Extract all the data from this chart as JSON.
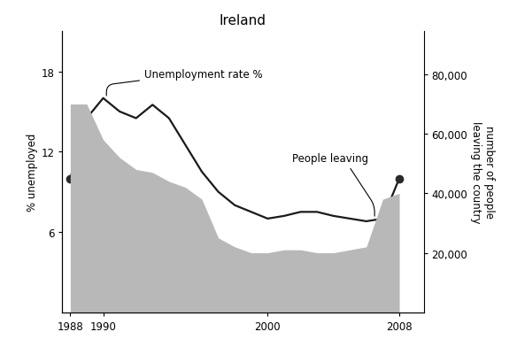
{
  "title": "Ireland",
  "years": [
    1988,
    1989,
    1990,
    1991,
    1992,
    1993,
    1994,
    1995,
    1996,
    1997,
    1998,
    1999,
    2000,
    2001,
    2002,
    2003,
    2004,
    2005,
    2006,
    2007,
    2008
  ],
  "unemployment": [
    10.0,
    14.5,
    16.0,
    15.0,
    14.5,
    15.5,
    14.5,
    12.5,
    10.5,
    9.0,
    8.0,
    7.5,
    7.0,
    7.2,
    7.5,
    7.5,
    7.2,
    7.0,
    6.8,
    7.0,
    10.0
  ],
  "people_leaving": [
    70000,
    70000,
    58000,
    52000,
    48000,
    47000,
    44000,
    42000,
    38000,
    25000,
    22000,
    20000,
    20000,
    21000,
    21000,
    20000,
    20000,
    21000,
    22000,
    38000,
    40000
  ],
  "left_ylabel": "% unemployed",
  "right_ylabel": "number of people\nleaving the country",
  "left_ylim": [
    0,
    21
  ],
  "right_ylim": [
    0,
    94500
  ],
  "left_yticks": [
    6,
    12,
    18
  ],
  "right_yticks": [
    20000,
    40000,
    60000,
    80000
  ],
  "xticks": [
    1988,
    1990,
    2000,
    2008
  ],
  "area_color": "#b8b8b8",
  "line_color": "#1a1a1a",
  "dot_color": "#2a2a2a",
  "dot_points_unemp": [
    [
      1988,
      10.0
    ],
    [
      2008,
      10.0
    ]
  ],
  "annotation_unemployment": "Unemployment rate %",
  "annotation_people": "People leaving",
  "background_color": "#ffffff",
  "fig_width": 5.84,
  "fig_height": 4.02,
  "dpi": 100
}
